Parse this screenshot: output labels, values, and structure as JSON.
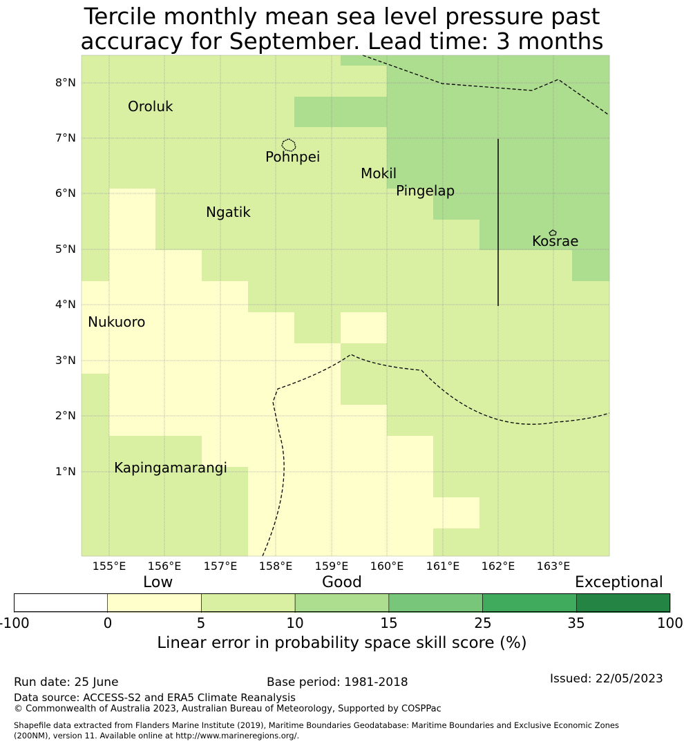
{
  "title": {
    "line1": "Tercile monthly mean sea level pressure past",
    "line2": "accuracy for September. Lead time: 3 months"
  },
  "map": {
    "lat_labels": [
      "8°N",
      "7°N",
      "6°N",
      "5°N",
      "4°N",
      "3°N",
      "2°N",
      "1°N"
    ],
    "lon_labels": [
      "155°E",
      "156°E",
      "157°E",
      "158°E",
      "159°E",
      "160°E",
      "161°E",
      "162°E",
      "163°E"
    ],
    "places": {
      "oroluk": "Oroluk",
      "pohnpei": "Pohnpei",
      "mokil": "Mokil",
      "pingelap": "Pingelap",
      "ngatik": "Ngatik",
      "kosrae": "Kosrae",
      "nukuoro": "Nukuoro",
      "kapingamarangi": "Kapingamarangi"
    },
    "category_colors": [
      "#ffffcc",
      "#d9f0a3",
      "#addd8e"
    ]
  },
  "colorbar": {
    "categories": {
      "low": "Low",
      "good": "Good",
      "exceptional": "Exceptional"
    },
    "ticks": [
      "-100",
      "0",
      "5",
      "10",
      "15",
      "25",
      "35",
      "100"
    ],
    "colors": [
      "#ffffff",
      "#ffffcc",
      "#d9f0a3",
      "#addd8e",
      "#78c679",
      "#41ab5d",
      "#238443"
    ],
    "label": "Linear error in probability space skill score (%)"
  },
  "footer": {
    "run_date": "Run date: 25 June",
    "base_period": "Base period: 1981-2018",
    "issued": "Issued: 22/05/2023",
    "data_source": "Data source: ACCESS-S2 and ERA5 Climate Reanalysis",
    "copyright": "© Commonwealth of Australia 2023, Australian Bureau of Meteorology, Supported by COSPPac",
    "shapefile_line1": "Shapefile data extracted from Flanders Marine Institute (2019), Maritime Boundaries Geodatabase: Maritime Boundaries and Exclusive Economic Zones",
    "shapefile_line2": "(200NM), version 11. Available online at http://www.marineregions.org/."
  }
}
